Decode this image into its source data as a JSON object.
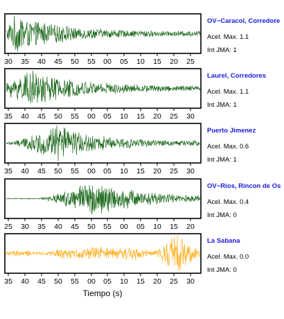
{
  "chart_data": {
    "type": "line",
    "xlabel": "Tiempo (s)",
    "panels": [
      {
        "station": "OV−Caracol, Corredore",
        "peak_label": "Acel. Max. 1.1",
        "intensity_label": "Int JMA: 1",
        "color": "#1f6b1f",
        "tick_labels": [
          "30",
          "35",
          "40",
          "45",
          "50",
          "55",
          "00",
          "05",
          "10",
          "15",
          "20",
          "25"
        ],
        "onset_s": 0,
        "peak_time_s": 3,
        "peak_amplitude": 1.1,
        "decay": "exponential"
      },
      {
        "station": "Laurel, Corredores",
        "peak_label": "Acel. Max. 1.1",
        "intensity_label": "Int JMA: 1",
        "color": "#1f6b1f",
        "tick_labels": [
          "35",
          "40",
          "45",
          "50",
          "55",
          "00",
          "05",
          "10",
          "15",
          "20",
          "25",
          "30"
        ],
        "onset_s": 0,
        "peak_time_s": 8,
        "peak_amplitude": 1.1,
        "decay": "exponential"
      },
      {
        "station": "Puerto Jimenez",
        "peak_label": "Acel. Max. 0.6",
        "intensity_label": "Int JMA: 1",
        "color": "#1f6b1f",
        "tick_labels": [
          "35",
          "40",
          "45",
          "50",
          "55",
          "00",
          "05",
          "10",
          "15",
          "20",
          "25",
          "30"
        ],
        "onset_s": 0,
        "peak_time_s": 15,
        "peak_amplitude": 0.6,
        "decay": "gradual"
      },
      {
        "station": "OV−Rios, Rincon de Os",
        "peak_label": "Acel. Max. 0.4",
        "intensity_label": "Int JMA: 0",
        "color": "#1f6b1f",
        "tick_labels": [
          "25",
          "30",
          "35",
          "40",
          "45",
          "50",
          "55",
          "00",
          "05",
          "10",
          "15",
          "20"
        ],
        "onset_s": 10,
        "peak_time_s": 26,
        "peak_amplitude": 0.4,
        "decay": "gradual"
      },
      {
        "station": "La Sabana",
        "peak_label": "Acel. Max. 0.0",
        "intensity_label": "Int JMA: 0",
        "color": "#ffb020",
        "tick_labels": [
          "35",
          "40",
          "45",
          "50",
          "55",
          "00",
          "05",
          "10",
          "15",
          "20",
          "25",
          "30"
        ],
        "onset_s": 0,
        "peak_time_s": 51,
        "peak_amplitude": 0.04,
        "decay": "noise"
      }
    ]
  }
}
